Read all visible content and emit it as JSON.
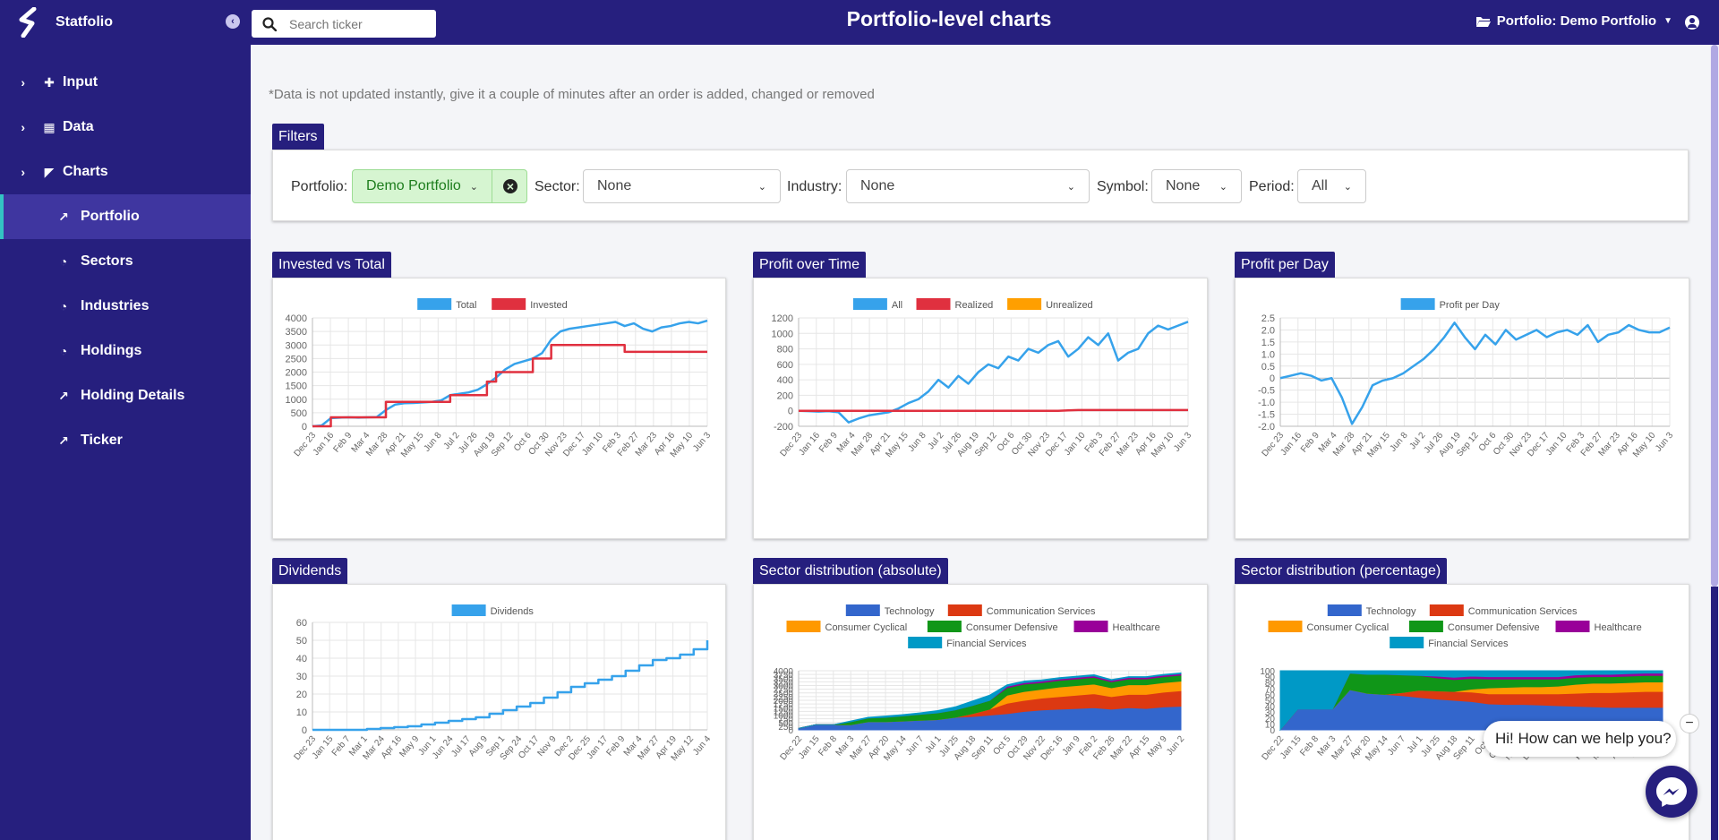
{
  "app": {
    "name": "Statfolio",
    "page_title": "Portfolio-level charts"
  },
  "search": {
    "placeholder": "Search ticker"
  },
  "header": {
    "portfolio_menu": "Portfolio: Demo Portfolio"
  },
  "sidebar": {
    "groups": [
      {
        "label": "Input",
        "icon": "plus-icon"
      },
      {
        "label": "Data",
        "icon": "table-icon"
      },
      {
        "label": "Charts",
        "icon": "chart-area-icon"
      }
    ],
    "items": [
      {
        "label": "Portfolio",
        "icon": "line-chart-icon",
        "active": true
      },
      {
        "label": "Sectors",
        "icon": "pie-chart-icon"
      },
      {
        "label": "Industries",
        "icon": "pie-chart-icon"
      },
      {
        "label": "Holdings",
        "icon": "pie-chart-icon"
      },
      {
        "label": "Holding Details",
        "icon": "line-chart-icon"
      },
      {
        "label": "Ticker",
        "icon": "line-chart-icon"
      }
    ]
  },
  "note": "*Data is not updated instantly, give it a couple of minutes after an order is added, changed or removed",
  "filters": {
    "title": "Filters",
    "portfolio_label": "Portfolio:",
    "portfolio_value": "Demo Portfolio",
    "sector_label": "Sector:",
    "sector_value": "None",
    "industry_label": "Industry:",
    "industry_value": "None",
    "symbol_label": "Symbol:",
    "symbol_value": "None",
    "period_label": "Period:",
    "period_value": "All"
  },
  "colors": {
    "brand": "#261f7e",
    "blue": "#36a2eb",
    "red": "#e0303f",
    "orange": "#ff9f00",
    "tech": "#3366cc",
    "comm": "#dc3912",
    "cyclical": "#ff9900",
    "defensive": "#109618",
    "health": "#990099",
    "financial": "#0099c6"
  },
  "chat": {
    "bubble": "Hi! How can we help you?",
    "close": "−"
  },
  "chart_data": [
    {
      "id": "invested",
      "title": "Invested vs Total",
      "type": "line",
      "ylim": [
        0,
        4000
      ],
      "yticks": [
        0,
        500,
        1000,
        1500,
        2000,
        2500,
        3000,
        3500,
        4000
      ],
      "xticks": [
        "Dec 23",
        "Jan 16",
        "Feb 9",
        "Mar 4",
        "Mar 28",
        "Apr 21",
        "May 15",
        "Jun 8",
        "Jul 2",
        "Jul 26",
        "Aug 19",
        "Sep 12",
        "Oct 6",
        "Oct 30",
        "Nov 23",
        "Dec 17",
        "Jan 10",
        "Feb 3",
        "Feb 27",
        "Mar 23",
        "Apr 16",
        "May 10",
        "Jun 3"
      ],
      "series": [
        {
          "name": "Total",
          "color": "#36a2eb",
          "values": [
            0,
            30,
            300,
            320,
            330,
            320,
            330,
            340,
            600,
            800,
            850,
            860,
            880,
            900,
            950,
            1150,
            1200,
            1250,
            1350,
            1550,
            1800,
            2100,
            2300,
            2400,
            2500,
            2700,
            3200,
            3500,
            3600,
            3650,
            3700,
            3750,
            3800,
            3850,
            3700,
            3800,
            3600,
            3500,
            3650,
            3700,
            3800,
            3850,
            3800,
            3900
          ]
        },
        {
          "name": "Invested",
          "color": "#e0303f",
          "values": [
            0,
            0,
            330,
            330,
            330,
            330,
            330,
            330,
            900,
            900,
            900,
            900,
            900,
            900,
            900,
            1150,
            1150,
            1150,
            1150,
            1650,
            2000,
            2000,
            2000,
            2000,
            2500,
            2500,
            3000,
            3000,
            3000,
            3000,
            3000,
            3000,
            3000,
            3000,
            2750,
            2750,
            2750,
            2750,
            2750,
            2750,
            2750,
            2750,
            2750,
            2750
          ]
        }
      ]
    },
    {
      "id": "profit",
      "title": "Profit over Time",
      "type": "line",
      "ylim": [
        -200,
        1200
      ],
      "yticks": [
        -200,
        0,
        200,
        400,
        600,
        800,
        1000,
        1200
      ],
      "xticks": [
        "Dec 23",
        "Jan 16",
        "Feb 9",
        "Mar 4",
        "Mar 28",
        "Apr 21",
        "May 15",
        "Jun 8",
        "Jul 2",
        "Jul 26",
        "Aug 19",
        "Sep 12",
        "Oct 6",
        "Oct 30",
        "Nov 23",
        "Dec 17",
        "Jan 10",
        "Feb 3",
        "Feb 27",
        "Mar 23",
        "Apr 16",
        "May 10",
        "Jun 3"
      ],
      "series": [
        {
          "name": "All",
          "color": "#36a2eb",
          "values": [
            0,
            -5,
            -10,
            -5,
            -20,
            -150,
            -100,
            -60,
            -40,
            -20,
            30,
            100,
            150,
            250,
            400,
            300,
            450,
            350,
            500,
            600,
            550,
            700,
            650,
            800,
            750,
            850,
            900,
            700,
            800,
            950,
            850,
            1000,
            650,
            750,
            800,
            1000,
            1100,
            1050,
            1100,
            1150
          ]
        },
        {
          "name": "Realized",
          "color": "#e0303f",
          "values": [
            0,
            0,
            0,
            0,
            0,
            0,
            0,
            0,
            0,
            0,
            0,
            0,
            0,
            0,
            0,
            0,
            0,
            0,
            0,
            0,
            0,
            0,
            0,
            0,
            0,
            0,
            0,
            5,
            10,
            10,
            10,
            10,
            10,
            10,
            10,
            10,
            10,
            10,
            10,
            10
          ]
        },
        {
          "name": "Unrealized",
          "color": "#ff9f00",
          "values": []
        }
      ]
    },
    {
      "id": "ppd",
      "title": "Profit per Day",
      "type": "line",
      "ylim": [
        -2,
        2.5
      ],
      "yticks": [
        -2.0,
        -1.5,
        -1.0,
        -0.5,
        0,
        0.5,
        1.0,
        1.5,
        2.0,
        2.5
      ],
      "xticks": [
        "Dec 23",
        "Jan 16",
        "Feb 9",
        "Mar 4",
        "Mar 28",
        "Apr 21",
        "May 15",
        "Jun 8",
        "Jul 2",
        "Jul 26",
        "Aug 19",
        "Sep 12",
        "Oct 6",
        "Oct 30",
        "Nov 23",
        "Dec 17",
        "Jan 10",
        "Feb 3",
        "Feb 27",
        "Mar 23",
        "Apr 16",
        "May 10",
        "Jun 3"
      ],
      "series": [
        {
          "name": "Profit per Day",
          "color": "#36a2eb",
          "values": [
            0,
            0.1,
            0.2,
            0.1,
            -0.1,
            0,
            -0.8,
            -1.9,
            -1.2,
            -0.3,
            -0.1,
            0,
            0.2,
            0.5,
            0.8,
            1.2,
            1.7,
            2.3,
            1.7,
            1.2,
            1.8,
            1.4,
            2.0,
            1.6,
            1.8,
            2.0,
            1.7,
            1.9,
            2.0,
            1.8,
            2.2,
            1.5,
            1.8,
            1.9,
            2.2,
            2.0,
            1.9,
            1.9,
            2.1
          ]
        }
      ]
    },
    {
      "id": "div",
      "title": "Dividends",
      "type": "line",
      "ylim": [
        0,
        60
      ],
      "yticks": [
        0,
        10,
        20,
        30,
        40,
        50,
        60
      ],
      "xticks": [
        "Dec 23",
        "Jan 15",
        "Feb 7",
        "Mar 1",
        "Mar 24",
        "Apr 16",
        "May 9",
        "Jun 1",
        "Jun 24",
        "Jul 17",
        "Aug 9",
        "Sep 1",
        "Sep 24",
        "Oct 17",
        "Nov 9",
        "Dec 2",
        "Dec 25",
        "Jan 17",
        "Feb 9",
        "Mar 4",
        "Mar 27",
        "Apr 19",
        "May 12",
        "Jun 4"
      ],
      "series": [
        {
          "name": "Dividends",
          "color": "#36a2eb",
          "values": [
            0,
            0,
            0,
            0,
            0.5,
            1,
            1.5,
            2,
            3,
            4,
            5,
            6,
            7,
            9,
            11,
            13,
            15,
            18,
            21,
            24,
            26,
            28,
            30,
            33,
            36,
            39,
            40,
            42,
            45,
            50
          ]
        }
      ]
    },
    {
      "id": "sec_abs",
      "title": "Sector distribution (absolute)",
      "type": "area",
      "ylim": [
        0,
        4000
      ],
      "yticks": [
        0,
        250,
        500,
        750,
        1000,
        1250,
        1500,
        1750,
        2000,
        2250,
        2500,
        2750,
        3000,
        3250,
        3500,
        3750,
        4000
      ],
      "xticks": [
        "Dec 22",
        "Jan 15",
        "Feb 8",
        "Mar 3",
        "Mar 27",
        "Apr 20",
        "May 14",
        "Jun 7",
        "Jul 1",
        "Jul 25",
        "Aug 18",
        "Sep 11",
        "Oct 5",
        "Oct 29",
        "Nov 22",
        "Dec 16",
        "Jan 9",
        "Feb 2",
        "Feb 26",
        "Mar 22",
        "Apr 15",
        "May 9",
        "Jun 2"
      ],
      "series": [
        {
          "name": "Technology",
          "color": "#3366cc",
          "values": [
            100,
            350,
            350,
            350,
            550,
            550,
            600,
            650,
            700,
            850,
            900,
            1000,
            1100,
            1250,
            1350,
            1400,
            1450,
            1500,
            1400,
            1500,
            1450,
            1550,
            1600
          ]
        },
        {
          "name": "Communication Services",
          "color": "#dc3912",
          "values": [
            0,
            0,
            0,
            0,
            0,
            0,
            0,
            0,
            0,
            0,
            200,
            400,
            700,
            750,
            800,
            850,
            900,
            950,
            850,
            900,
            950,
            1000,
            1050
          ]
        },
        {
          "name": "Consumer Cyclical",
          "color": "#ff9900",
          "values": [
            0,
            0,
            0,
            0,
            0,
            0,
            0,
            0,
            0,
            0,
            0,
            0,
            550,
            600,
            600,
            650,
            650,
            650,
            600,
            650,
            650,
            650,
            650
          ]
        },
        {
          "name": "Consumer Defensive",
          "color": "#109618",
          "values": [
            0,
            0,
            0,
            200,
            250,
            300,
            350,
            400,
            450,
            500,
            550,
            600,
            500,
            500,
            450,
            450,
            450,
            450,
            400,
            400,
            400,
            400,
            400
          ]
        },
        {
          "name": "Healthcare",
          "color": "#990099",
          "values": [
            0,
            0,
            0,
            0,
            0,
            0,
            0,
            0,
            0,
            0,
            0,
            0,
            100,
            100,
            100,
            100,
            100,
            100,
            100,
            100,
            100,
            100,
            100
          ]
        },
        {
          "name": "Financial Services",
          "color": "#0099c6",
          "values": [
            0,
            0,
            0,
            50,
            50,
            80,
            80,
            100,
            150,
            200,
            300,
            350,
            100,
            100,
            80,
            80,
            80,
            80,
            50,
            50,
            50,
            50,
            50
          ]
        }
      ]
    },
    {
      "id": "sec_pct",
      "title": "Sector distribution (percentage)",
      "type": "area",
      "ylim": [
        0,
        100
      ],
      "yticks": [
        0,
        10,
        20,
        30,
        40,
        50,
        60,
        70,
        80,
        90,
        100
      ],
      "xticks": [
        "Dec 22",
        "Jan 15",
        "Feb 8",
        "Mar 3",
        "Mar 27",
        "Apr 20",
        "May 14",
        "Jun 7",
        "Jul 1",
        "Jul 25",
        "Aug 18",
        "Sep 11",
        "Oct 5",
        "Oct 29",
        "Nov 22",
        "Dec 16",
        "Jan 9",
        "Feb 2",
        "Feb 26",
        "Mar 22",
        "Apr 15",
        "May 9",
        "Jun 2"
      ],
      "series": [
        {
          "name": "Technology",
          "color": "#3366cc",
          "values": [
            0,
            35,
            35,
            35,
            68,
            62,
            60,
            58,
            55,
            52,
            50,
            48,
            44,
            43,
            43,
            42,
            41,
            40,
            39,
            38,
            38,
            38,
            38
          ]
        },
        {
          "name": "Communication Services",
          "color": "#dc3912",
          "values": [
            0,
            0,
            0,
            0,
            0,
            0,
            0,
            5,
            12,
            14,
            15,
            16,
            17,
            18,
            18,
            19,
            20,
            22,
            24,
            25,
            26,
            27,
            27
          ]
        },
        {
          "name": "Consumer Cyclical",
          "color": "#ff9900",
          "values": [
            0,
            0,
            0,
            0,
            0,
            0,
            0,
            0,
            0,
            0,
            0,
            5,
            10,
            11,
            12,
            12,
            13,
            15,
            16,
            16,
            16,
            16,
            16
          ]
        },
        {
          "name": "Consumer Defensive",
          "color": "#109618",
          "values": [
            0,
            0,
            0,
            0,
            28,
            32,
            34,
            30,
            25,
            22,
            20,
            18,
            15,
            14,
            13,
            13,
            12,
            12,
            11,
            11,
            11,
            11,
            11
          ]
        },
        {
          "name": "Healthcare",
          "color": "#990099",
          "values": [
            0,
            0,
            0,
            0,
            0,
            0,
            0,
            0,
            0,
            3,
            4,
            4,
            4,
            4,
            4,
            4,
            4,
            4,
            4,
            4,
            4,
            4,
            4
          ]
        },
        {
          "name": "Financial Services",
          "color": "#0099c6",
          "values": [
            100,
            65,
            65,
            65,
            4,
            6,
            6,
            7,
            8,
            9,
            11,
            9,
            10,
            10,
            10,
            10,
            10,
            7,
            6,
            6,
            5,
            4,
            4
          ]
        }
      ]
    }
  ]
}
